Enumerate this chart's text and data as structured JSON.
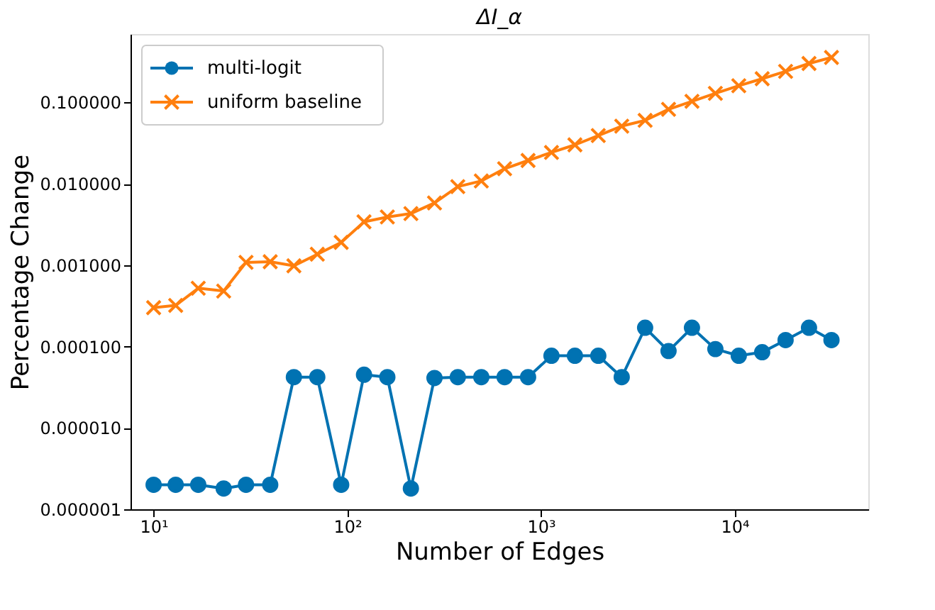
{
  "chart_data": {
    "type": "line",
    "title": "ΔI_α",
    "xlabel": "Number of Edges",
    "ylabel": "Percentage Change",
    "x": [
      10,
      13,
      17,
      23,
      30,
      40,
      53,
      70,
      93,
      122,
      161,
      213,
      282,
      372,
      492,
      649,
      858,
      1133,
      1497,
      1977,
      2612,
      3450,
      4557,
      6020,
      7952,
      10504,
      13874,
      18327,
      24209,
      31623
    ],
    "series": [
      {
        "name": "multi-logit",
        "color": "#0072b2",
        "marker": "circle",
        "values": [
          2e-06,
          2e-06,
          2e-06,
          1.8e-06,
          2e-06,
          2e-06,
          4.2e-05,
          4.2e-05,
          2e-06,
          4.5e-05,
          4.2e-05,
          1.8e-06,
          4.1e-05,
          4.2e-05,
          4.2e-05,
          4.2e-05,
          4.2e-05,
          7.7e-05,
          7.7e-05,
          7.7e-05,
          4.2e-05,
          0.00017,
          8.8e-05,
          0.00017,
          9.3e-05,
          7.7e-05,
          8.5e-05,
          0.00012,
          0.00017,
          0.00012
        ]
      },
      {
        "name": "uniform baseline",
        "color": "#ff7f0e",
        "marker": "cross",
        "values": [
          0.0003,
          0.00032,
          0.00052,
          0.00048,
          0.00108,
          0.0011,
          0.00098,
          0.00136,
          0.0019,
          0.0034,
          0.0039,
          0.0043,
          0.0058,
          0.0092,
          0.0108,
          0.0153,
          0.0193,
          0.0242,
          0.03,
          0.039,
          0.051,
          0.06,
          0.082,
          0.103,
          0.129,
          0.16,
          0.195,
          0.24,
          0.3,
          0.356
        ]
      }
    ],
    "log": "xy",
    "xlim": [
      7.6,
      49000
    ],
    "ylim": [
      1e-06,
      0.69
    ],
    "xticks": [
      {
        "value": 10,
        "label": "10¹"
      },
      {
        "value": 100,
        "label": "10²"
      },
      {
        "value": 1000,
        "label": "10³"
      },
      {
        "value": 10000,
        "label": "10⁴"
      }
    ],
    "yticks": [
      {
        "value": 1e-06,
        "label": "0.000001"
      },
      {
        "value": 1e-05,
        "label": "0.000010"
      },
      {
        "value": 0.0001,
        "label": "0.000100"
      },
      {
        "value": 0.001,
        "label": "0.001000"
      },
      {
        "value": 0.01,
        "label": "0.010000"
      },
      {
        "value": 0.1,
        "label": "0.100000"
      }
    ],
    "grid": false,
    "legend": "top left"
  }
}
